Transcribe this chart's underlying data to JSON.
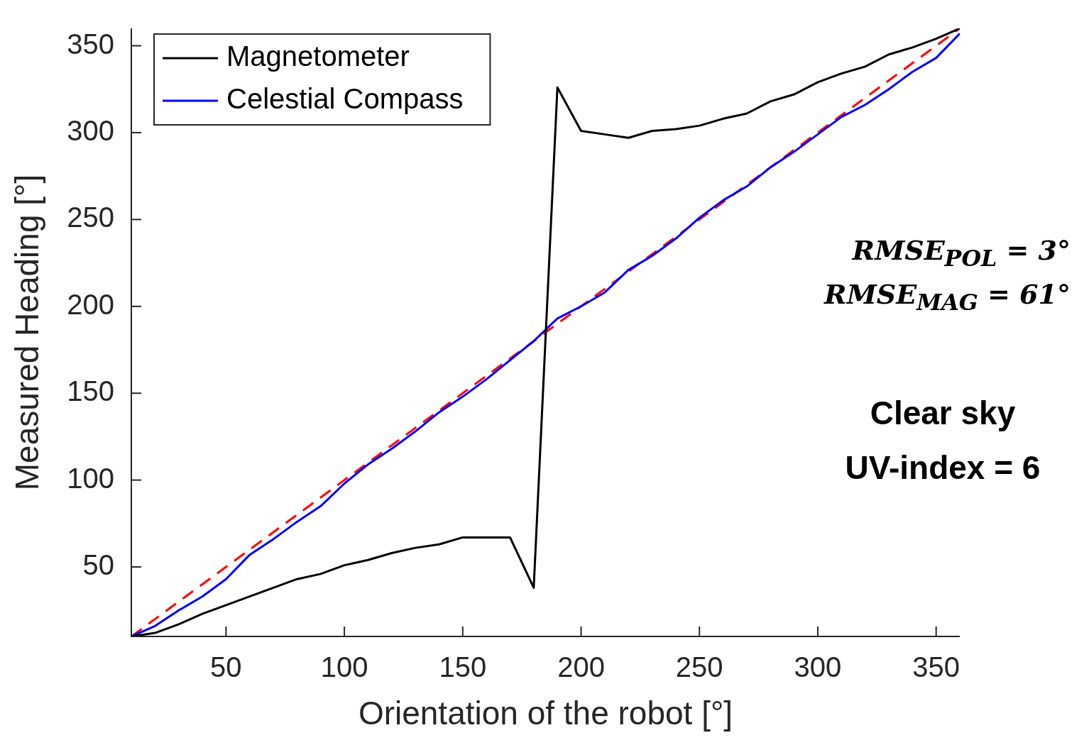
{
  "chart_data": {
    "type": "line",
    "xlabel": "Orientation of the robot [°]",
    "ylabel": "Measured Heading [°]",
    "x": [
      10,
      20,
      30,
      40,
      50,
      60,
      70,
      80,
      90,
      100,
      110,
      120,
      130,
      140,
      150,
      160,
      170,
      180,
      190,
      200,
      210,
      220,
      230,
      240,
      250,
      260,
      270,
      280,
      290,
      300,
      310,
      320,
      330,
      340,
      350,
      360
    ],
    "series": [
      {
        "name": "Magnetometer",
        "color": "#000000",
        "values": [
          10,
          12,
          17,
          23,
          28,
          33,
          38,
          43,
          46,
          51,
          54,
          58,
          61,
          63,
          67,
          67,
          67,
          38,
          326,
          301,
          299,
          297,
          301,
          302,
          304,
          308,
          311,
          318,
          322,
          329,
          334,
          338,
          345,
          349,
          354,
          360
        ]
      },
      {
        "name": "Celestial Compass",
        "color": "#0000ff",
        "values": [
          10,
          16,
          25,
          33,
          43,
          57,
          66,
          76,
          85,
          98,
          109,
          118,
          128,
          139,
          148,
          158,
          169,
          180,
          193,
          200,
          208,
          221,
          229,
          239,
          251,
          261,
          269,
          280,
          289,
          299,
          309,
          316,
          325,
          335,
          343,
          357
        ]
      },
      {
        "type": "line",
        "color": "#ff0000",
        "line_style": "dashed",
        "x": [
          10,
          360
        ],
        "values": [
          10,
          360
        ]
      }
    ],
    "xlim": [
      10,
      360
    ],
    "ylim": [
      10,
      360
    ],
    "xticks": [
      50,
      100,
      150,
      200,
      250,
      300,
      350
    ],
    "yticks": [
      50,
      100,
      150,
      200,
      250,
      300,
      350
    ],
    "grid": false,
    "legend": "top left",
    "marker": "none",
    "annotations": [
      "RMSE$_{POL}$ = 3°",
      "RMSE$_{MAG}$ = 61°",
      "Clear sky",
      "UV-index = 6"
    ]
  }
}
